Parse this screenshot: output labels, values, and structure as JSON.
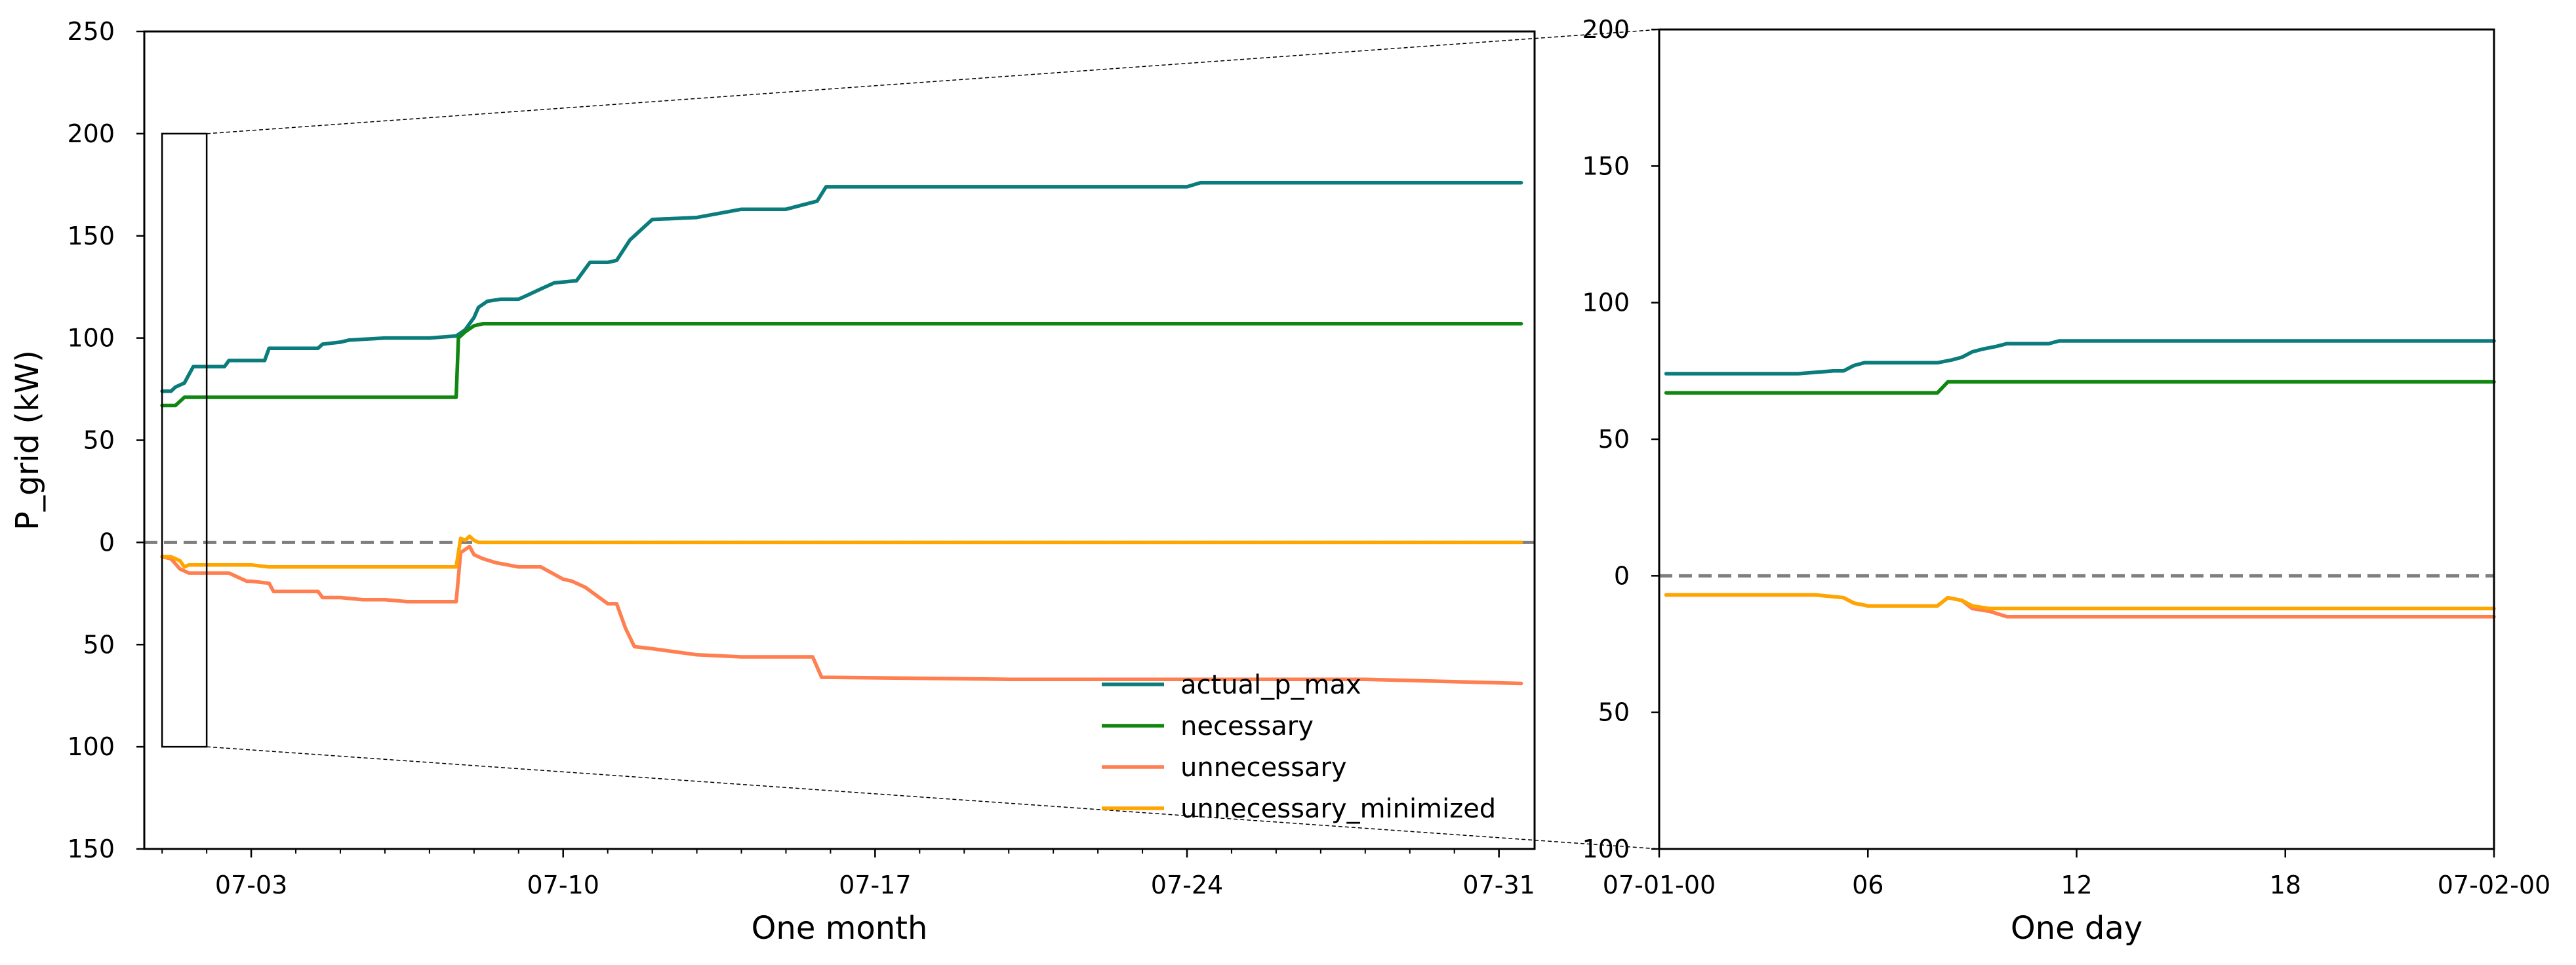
{
  "chart_data": [
    {
      "type": "line",
      "xlabel": "One month",
      "ylabel": "P_grid (kW)",
      "ylim": [
        -150,
        250
      ],
      "yticks": [
        250,
        200,
        150,
        100,
        50,
        0,
        -50,
        -100,
        -150
      ],
      "ytick_labels": [
        "250",
        "200",
        "150",
        "100",
        "50",
        "0",
        "50",
        "100",
        "150"
      ],
      "xlim": [
        0.6,
        31.8
      ],
      "xticks": [
        3,
        10,
        17,
        24,
        31
      ],
      "xtick_labels": [
        "07-03",
        "07-10",
        "07-17",
        "07-24",
        "07-31"
      ],
      "grid": false,
      "legend": "lower-right",
      "zero_line": {
        "value": 0,
        "color": "#7f7f7f",
        "style": "dashed"
      },
      "zoom_box": {
        "x": [
          1,
          2
        ],
        "y": [
          -100,
          200
        ]
      },
      "series": [
        {
          "name": "actual_p_max",
          "color": "#0b7c7c",
          "x": [
            1.0,
            1.2,
            1.3,
            1.5,
            1.6,
            1.7,
            2.0,
            2.4,
            2.5,
            3.3,
            3.4,
            4.5,
            4.6,
            5.0,
            5.2,
            6.0,
            7.0,
            7.6,
            7.8,
            8.0,
            8.1,
            8.3,
            8.6,
            9.0,
            9.2,
            9.5,
            9.8,
            10.3,
            10.6,
            11.0,
            11.2,
            11.5,
            12.0,
            13.0,
            14.0,
            15.0,
            15.7,
            15.9,
            20.0,
            23.0,
            24.0,
            24.3,
            24.5,
            28.0,
            31.5
          ],
          "values": [
            74,
            74,
            76,
            78,
            82,
            86,
            86,
            86,
            89,
            89,
            95,
            95,
            97,
            98,
            99,
            100,
            100,
            101,
            104,
            110,
            115,
            118,
            119,
            119,
            121,
            124,
            127,
            128,
            137,
            137,
            138,
            148,
            158,
            159,
            163,
            163,
            167,
            174,
            174,
            174,
            174,
            176,
            176,
            176,
            176
          ]
        },
        {
          "name": "necessary",
          "color": "#118611",
          "x": [
            1.0,
            1.3,
            1.5,
            2.0,
            3.0,
            5.0,
            7.6,
            7.65,
            7.8,
            8.0,
            8.2,
            8.3,
            10.0,
            20.0,
            31.5
          ],
          "values": [
            67,
            67,
            71,
            71,
            71,
            71,
            71,
            100,
            103,
            106,
            107,
            107,
            107,
            107,
            107
          ]
        },
        {
          "name": "unnecessary",
          "color": "#ff7f50",
          "x": [
            1.0,
            1.2,
            1.4,
            1.6,
            2.0,
            2.5,
            2.9,
            3.0,
            3.4,
            3.5,
            4.0,
            4.5,
            4.6,
            5.0,
            5.5,
            6.0,
            6.5,
            7.0,
            7.6,
            7.7,
            7.9,
            8.0,
            8.2,
            8.5,
            9.0,
            9.3,
            9.5,
            10.0,
            10.2,
            10.5,
            11.0,
            11.2,
            11.4,
            11.6,
            12.0,
            13.0,
            14.0,
            15.0,
            15.6,
            15.8,
            20.0,
            25.0,
            28.0,
            31.5
          ],
          "values": [
            -7,
            -8,
            -13,
            -15,
            -15,
            -15,
            -19,
            -19,
            -20,
            -24,
            -24,
            -24,
            -27,
            -27,
            -28,
            -28,
            -29,
            -29,
            -29,
            -5,
            -2,
            -6,
            -8,
            -10,
            -12,
            -12,
            -12,
            -18,
            -19,
            -22,
            -30,
            -30,
            -42,
            -51,
            -52,
            -55,
            -56,
            -56,
            -56,
            -66,
            -67,
            -67,
            -67,
            -69
          ]
        },
        {
          "name": "unnecessary_minimized",
          "color": "#ffa500",
          "x": [
            1.0,
            1.2,
            1.4,
            1.5,
            1.6,
            2.0,
            2.5,
            3.0,
            3.4,
            4.0,
            5.0,
            6.0,
            7.0,
            7.6,
            7.7,
            7.8,
            7.9,
            8.0,
            8.1,
            8.3,
            9.0,
            20.0,
            31.5
          ],
          "values": [
            -7,
            -7,
            -9,
            -12,
            -11,
            -11,
            -11,
            -11,
            -12,
            -12,
            -12,
            -12,
            -12,
            -12,
            2,
            1,
            3,
            1,
            0,
            0,
            0,
            0,
            0
          ]
        }
      ]
    },
    {
      "type": "line",
      "xlabel": "One day",
      "ylabel": "",
      "ylim": [
        -100,
        200
      ],
      "yticks": [
        200,
        150,
        100,
        50,
        0,
        -50,
        -100
      ],
      "ytick_labels": [
        "200",
        "150",
        "100",
        "50",
        "0",
        "50",
        "100"
      ],
      "xlim": [
        0,
        24
      ],
      "xticks": [
        0,
        6,
        12,
        18,
        24
      ],
      "xtick_labels": [
        "07-01-00",
        "06",
        "12",
        "18",
        "07-02-00"
      ],
      "grid": false,
      "zero_line": {
        "value": 0,
        "color": "#7f7f7f",
        "style": "dashed"
      },
      "series": [
        {
          "name": "actual_p_max",
          "color": "#0b7c7c",
          "x": [
            0.2,
            2.0,
            4.0,
            5.0,
            5.3,
            5.6,
            5.9,
            8.0,
            8.4,
            8.7,
            9.0,
            9.3,
            9.7,
            10.0,
            11.0,
            11.2,
            11.5,
            24.0
          ],
          "values": [
            74,
            74,
            74,
            75,
            75,
            77,
            78,
            78,
            79,
            80,
            82,
            83,
            84,
            85,
            85,
            85,
            86,
            86
          ]
        },
        {
          "name": "necessary",
          "color": "#118611",
          "x": [
            0.2,
            8.0,
            8.3,
            24.0
          ],
          "values": [
            67,
            67,
            71,
            71
          ]
        },
        {
          "name": "unnecessary",
          "color": "#ff7f50",
          "x": [
            0.2,
            3.0,
            4.5,
            5.3,
            5.6,
            6.0,
            7.0,
            8.0,
            8.3,
            8.7,
            9.0,
            9.5,
            10.0,
            11.0,
            11.5,
            12.0,
            24.0
          ],
          "values": [
            -7,
            -7,
            -7,
            -8,
            -10,
            -11,
            -11,
            -11,
            -8,
            -9,
            -12,
            -13,
            -15,
            -15,
            -15,
            -15,
            -15
          ]
        },
        {
          "name": "unnecessary_minimized",
          "color": "#ffa500",
          "x": [
            0.2,
            3.0,
            4.5,
            5.3,
            5.6,
            6.0,
            7.0,
            8.0,
            8.3,
            8.7,
            9.0,
            9.5,
            10.0,
            24.0
          ],
          "values": [
            -7,
            -7,
            -7,
            -8,
            -10,
            -11,
            -11,
            -11,
            -8,
            -9,
            -11,
            -12,
            -12,
            -12
          ]
        }
      ]
    }
  ]
}
